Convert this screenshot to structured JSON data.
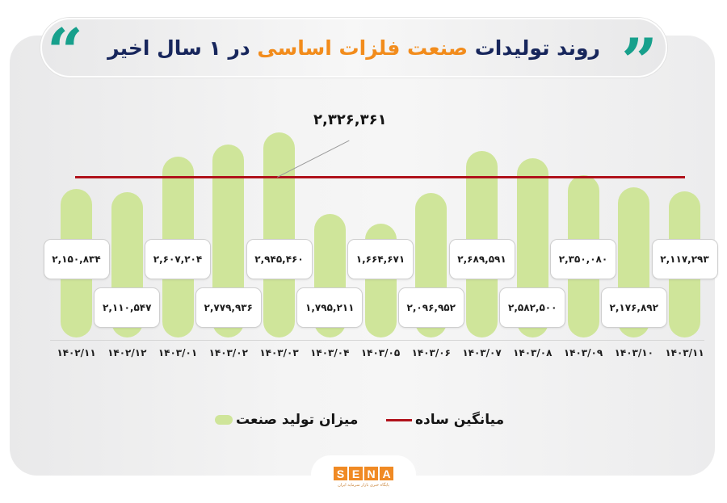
{
  "header": {
    "title_part1": "روند تولیدات ",
    "title_accent": "صنعت فلزات اساسی",
    "title_part2": " در ۱ سال اخیر",
    "open_quote_icon": "“",
    "close_quote_icon": "”"
  },
  "colors": {
    "title_navy": "#17265c",
    "title_orange": "#f28c1c",
    "quote_teal": "#17a08c",
    "bar_green": "#cfe59a",
    "avg_line_red": "#b0121b",
    "logo_orange": "#f08a24"
  },
  "chart_data": {
    "type": "bar",
    "title": "روند تولیدات صنعت فلزات اساسی در ۱ سال اخیر",
    "xlabel": "",
    "ylabel": "",
    "categories": [
      "1402/11",
      "1402/12",
      "1403/01",
      "1403/02",
      "1403/03",
      "1403/04",
      "1403/05",
      "1403/06",
      "1403/07",
      "1403/08",
      "1403/09",
      "1403/10",
      "1403/11"
    ],
    "categories_display": [
      "۱۴۰۲/۱۱",
      "۱۴۰۲/۱۲",
      "۱۴۰۳/۰۱",
      "۱۴۰۳/۰۲",
      "۱۴۰۳/۰۳",
      "۱۴۰۳/۰۴",
      "۱۴۰۳/۰۵",
      "۱۴۰۳/۰۶",
      "۱۴۰۳/۰۷",
      "۱۴۰۳/۰۸",
      "۱۴۰۳/۰۹",
      "۱۴۰۳/۱۰",
      "۱۴۰۳/۱۱"
    ],
    "series": [
      {
        "name": "میزان تولید صنعت",
        "type": "bar",
        "values": [
          2150834,
          2110547,
          2607204,
          2779936,
          2945460,
          1795211,
          1664671,
          2096952,
          2689591,
          2582500,
          2350080,
          2176892,
          2117293
        ],
        "labels_display": [
          "۲,۱۵۰,۸۳۴",
          "۲,۱۱۰,۵۴۷",
          "۲,۶۰۷,۲۰۴",
          "۲,۷۷۹,۹۳۶",
          "۲,۹۴۵,۴۶۰",
          "۱,۷۹۵,۲۱۱",
          "۱,۶۶۴,۶۷۱",
          "۲,۰۹۶,۹۵۲",
          "۲,۶۸۹,۵۹۱",
          "۲,۵۸۲,۵۰۰",
          "۲,۳۵۰,۰۸۰",
          "۲,۱۷۶,۸۹۲",
          "۲,۱۱۷,۲۹۳"
        ]
      },
      {
        "name": "میانگین ساده",
        "type": "line",
        "value": 2326361,
        "label_display": "۲,۳۲۶,۳۶۱"
      }
    ],
    "legend": [
      "میانگین ساده",
      "میزان تولید صنعت"
    ],
    "legend_position": "bottom",
    "grid": false,
    "y_axis_visible": false
  },
  "legend": {
    "avg_label": "میانگین ساده",
    "bar_label": "میزان تولید صنعت"
  },
  "footer": {
    "logo_letters": [
      "S",
      "E",
      "N",
      "A"
    ],
    "logo_tagline": "پایگاه خبری بازار سرمایه ایران"
  }
}
